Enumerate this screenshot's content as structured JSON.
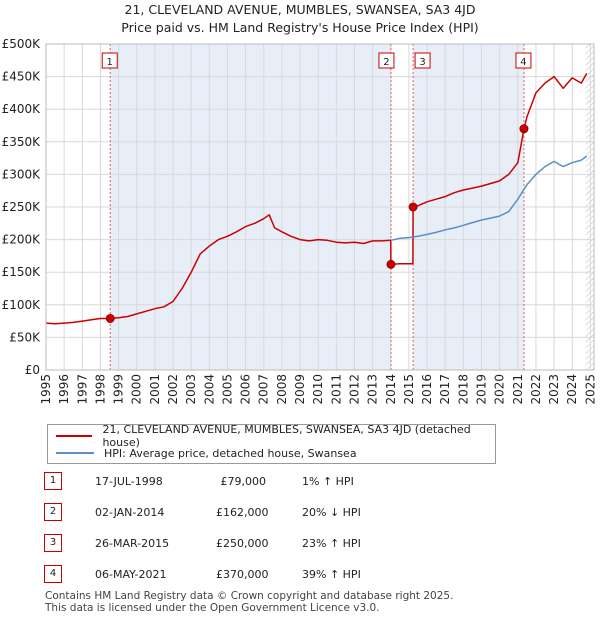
{
  "chart_data": {
    "type": "line",
    "title": "21, CLEVELAND AVENUE, MUMBLES, SWANSEA, SA3 4JD",
    "subtitle": "Price paid vs. HM Land Registry's House Price Index (HPI)",
    "xlabel": "",
    "ylabel": "",
    "xlim": [
      1995,
      2025.2
    ],
    "ylim": [
      0,
      500000
    ],
    "x_ticks": [
      1995,
      1996,
      1997,
      1998,
      1999,
      2000,
      2001,
      2002,
      2003,
      2004,
      2005,
      2006,
      2007,
      2008,
      2009,
      2010,
      2011,
      2012,
      2013,
      2014,
      2015,
      2016,
      2017,
      2018,
      2019,
      2020,
      2021,
      2022,
      2023,
      2024,
      2025
    ],
    "y_ticks": [
      {
        "value": 0,
        "label": "£0"
      },
      {
        "value": 50000,
        "label": "£50K"
      },
      {
        "value": 100000,
        "label": "£100K"
      },
      {
        "value": 150000,
        "label": "£150K"
      },
      {
        "value": 200000,
        "label": "£200K"
      },
      {
        "value": 250000,
        "label": "£250K"
      },
      {
        "value": 300000,
        "label": "£300K"
      },
      {
        "value": 350000,
        "label": "£350K"
      },
      {
        "value": 400000,
        "label": "£400K"
      },
      {
        "value": 450000,
        "label": "£450K"
      },
      {
        "value": 500000,
        "label": "£500K"
      }
    ],
    "grid": true,
    "series": [
      {
        "name": "21, CLEVELAND AVENUE, MUMBLES, SWANSEA, SA3 4JD (detached house)",
        "color": "#cc0000",
        "x": [
          1995,
          1995.5,
          1996,
          1996.5,
          1997,
          1997.5,
          1998,
          1998.54,
          1999,
          1999.5,
          2000,
          2000.5,
          2001,
          2001.5,
          2002,
          2002.5,
          2003,
          2003.5,
          2004,
          2004.5,
          2005,
          2005.5,
          2006,
          2006.5,
          2007,
          2007.3,
          2007.6,
          2008,
          2008.5,
          2009,
          2009.5,
          2010,
          2010.5,
          2011,
          2011.5,
          2012,
          2012.5,
          2013,
          2013.5,
          2014.0,
          2014.01,
          2014.5,
          2015.22,
          2015.23,
          2015.5,
          2016,
          2016.5,
          2017,
          2017.5,
          2018,
          2018.5,
          2019,
          2019.5,
          2020,
          2020.5,
          2021.0,
          2021.34,
          2021.5,
          2022,
          2022.5,
          2023,
          2023.5,
          2024,
          2024.5,
          2024.8
        ],
        "values": [
          72000,
          71000,
          72000,
          73000,
          75000,
          77000,
          79000,
          79000,
          80000,
          82000,
          86000,
          90000,
          94000,
          97000,
          105000,
          125000,
          150000,
          178000,
          190000,
          200000,
          205000,
          212000,
          220000,
          225000,
          232000,
          238000,
          218000,
          212000,
          205000,
          200000,
          198000,
          200000,
          199000,
          196000,
          195000,
          196000,
          194000,
          198000,
          198000,
          199000,
          162000,
          163000,
          163000,
          250000,
          252000,
          258000,
          262000,
          266000,
          272000,
          276000,
          279000,
          282000,
          286000,
          290000,
          300000,
          318000,
          370000,
          388000,
          425000,
          440000,
          450000,
          432000,
          448000,
          440000,
          455000
        ]
      },
      {
        "name": "HPI: Average price, detached house, Swansea",
        "color": "#5b8ec4",
        "x": [
          2014.0,
          2014.5,
          2015,
          2015.5,
          2016,
          2016.5,
          2017,
          2017.5,
          2018,
          2018.5,
          2019,
          2019.5,
          2020,
          2020.5,
          2021,
          2021.5,
          2022,
          2022.5,
          2023,
          2023.5,
          2024,
          2024.5,
          2024.8
        ],
        "values": [
          199000,
          202000,
          203000,
          205000,
          208000,
          211000,
          215000,
          218000,
          222000,
          226000,
          230000,
          233000,
          236000,
          243000,
          262000,
          284000,
          300000,
          312000,
          320000,
          312000,
          318000,
          322000,
          328000
        ]
      }
    ],
    "sales": [
      {
        "label": "1",
        "x": 1998.54,
        "value": 79000
      },
      {
        "label": "2",
        "x": 2014.01,
        "value": 162000
      },
      {
        "label": "3",
        "x": 2015.23,
        "value": 250000
      },
      {
        "label": "4",
        "x": 2021.34,
        "value": 370000
      }
    ]
  },
  "legend": {
    "property_label": "21, CLEVELAND AVENUE, MUMBLES, SWANSEA, SA3 4JD (detached house)",
    "hpi_label": "HPI: Average price, detached house, Swansea"
  },
  "transactions": [
    {
      "num": "1",
      "date": "17-JUL-1998",
      "price": "£79,000",
      "hpi": "1% ↑ HPI"
    },
    {
      "num": "2",
      "date": "02-JAN-2014",
      "price": "£162,000",
      "hpi": "20% ↓ HPI"
    },
    {
      "num": "3",
      "date": "26-MAR-2015",
      "price": "£250,000",
      "hpi": "23% ↑ HPI"
    },
    {
      "num": "4",
      "date": "06-MAY-2021",
      "price": "£370,000",
      "hpi": "39% ↑ HPI"
    }
  ],
  "footer": {
    "line1": "Contains HM Land Registry data © Crown copyright and database right 2025.",
    "line2": "This data is licensed under the Open Government Licence v3.0."
  }
}
